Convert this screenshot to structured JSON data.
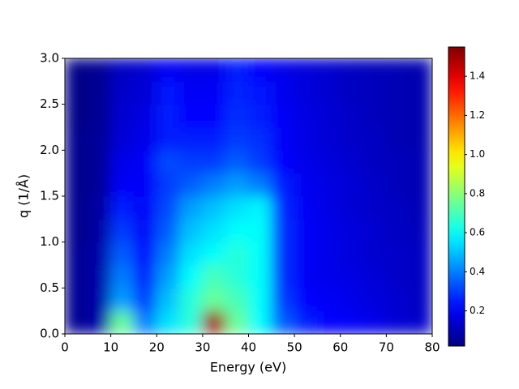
{
  "chart_data": {
    "type": "heatmap",
    "x_label": "Energy   (eV)",
    "y_label": "q   (1/Å)",
    "x": [
      0,
      5,
      10,
      15,
      20,
      25,
      30,
      35,
      40,
      45,
      50,
      55,
      60,
      65,
      70,
      75,
      80
    ],
    "y": [
      0,
      0.25,
      0.5,
      0.75,
      1,
      1.25,
      1.5,
      1.75,
      2,
      2.25,
      2.5,
      2.75,
      3
    ],
    "values": [
      [
        0.05,
        0.08,
        0.75,
        0.4,
        0.55,
        0.65,
        1.5,
        0.75,
        0.6,
        0.35,
        0.25,
        0.22,
        0.2,
        0.18,
        0.15,
        0.13
      ],
      [
        0.05,
        0.08,
        0.45,
        0.3,
        0.5,
        0.65,
        0.75,
        0.7,
        0.6,
        0.3,
        0.22,
        0.2,
        0.18,
        0.16,
        0.14,
        0.12
      ],
      [
        0.05,
        0.08,
        0.4,
        0.25,
        0.45,
        0.6,
        0.7,
        0.65,
        0.6,
        0.28,
        0.2,
        0.18,
        0.17,
        0.15,
        0.13,
        0.12
      ],
      [
        0.05,
        0.08,
        0.35,
        0.22,
        0.4,
        0.55,
        0.6,
        0.65,
        0.6,
        0.28,
        0.2,
        0.18,
        0.16,
        0.14,
        0.13,
        0.12
      ],
      [
        0.04,
        0.07,
        0.3,
        0.2,
        0.35,
        0.5,
        0.55,
        0.6,
        0.6,
        0.28,
        0.2,
        0.18,
        0.16,
        0.14,
        0.12,
        0.11
      ],
      [
        0.04,
        0.07,
        0.25,
        0.2,
        0.32,
        0.45,
        0.5,
        0.55,
        0.58,
        0.27,
        0.2,
        0.17,
        0.15,
        0.13,
        0.12,
        0.1
      ],
      [
        0.04,
        0.06,
        0.2,
        0.2,
        0.3,
        0.35,
        0.4,
        0.45,
        0.4,
        0.25,
        0.19,
        0.17,
        0.15,
        0.13,
        0.11,
        0.1
      ],
      [
        0.04,
        0.06,
        0.18,
        0.2,
        0.32,
        0.3,
        0.3,
        0.35,
        0.3,
        0.22,
        0.18,
        0.16,
        0.14,
        0.12,
        0.11,
        0.1
      ],
      [
        0.04,
        0.06,
        0.15,
        0.18,
        0.25,
        0.25,
        0.25,
        0.3,
        0.28,
        0.2,
        0.17,
        0.15,
        0.13,
        0.12,
        0.1,
        0.09
      ],
      [
        0.03,
        0.05,
        0.14,
        0.17,
        0.25,
        0.22,
        0.22,
        0.28,
        0.25,
        0.2,
        0.17,
        0.15,
        0.13,
        0.11,
        0.1,
        0.09
      ],
      [
        0.03,
        0.05,
        0.13,
        0.15,
        0.24,
        0.2,
        0.2,
        0.26,
        0.24,
        0.19,
        0.16,
        0.14,
        0.12,
        0.11,
        0.1,
        0.09
      ],
      [
        0.03,
        0.05,
        0.12,
        0.14,
        0.2,
        0.18,
        0.18,
        0.25,
        0.22,
        0.18,
        0.16,
        0.14,
        0.12,
        0.11,
        0.1,
        0.09
      ]
    ],
    "colormap": "jet",
    "xlim": [
      0,
      80
    ],
    "xticks": [
      0,
      10,
      20,
      30,
      40,
      50,
      60,
      70,
      80
    ],
    "ylim": [
      0,
      3
    ],
    "yticks": [
      {
        "value": 0,
        "label": "0.0"
      },
      0.5,
      {
        "value": 1,
        "label": "1.0"
      },
      1.5,
      {
        "value": 2,
        "label": "2.0"
      },
      2.5,
      {
        "value": 3,
        "label": "3.0"
      }
    ],
    "clim": [
      0.02,
      1.55
    ],
    "cticks": [
      0.2,
      0.4,
      0.6,
      0.8,
      {
        "value": 1,
        "label": "1.0"
      },
      1.2,
      1.4
    ]
  }
}
